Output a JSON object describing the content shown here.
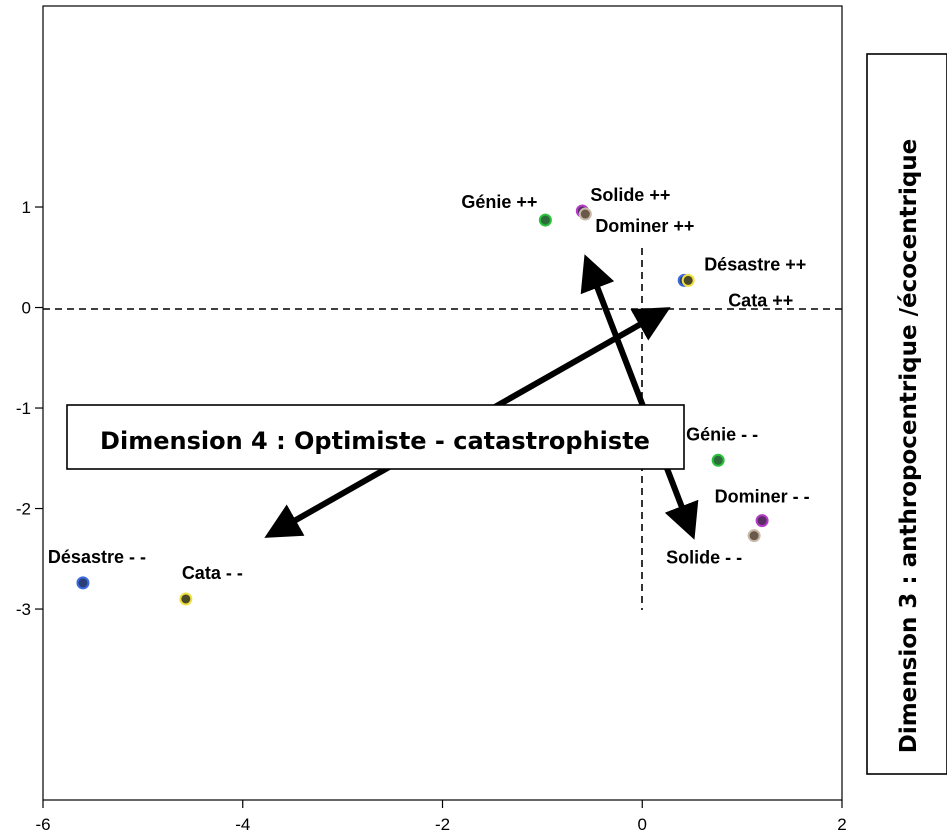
{
  "chart_data": {
    "type": "scatter",
    "xlim": [
      -6,
      2
    ],
    "ylim": [
      -4.9,
      3.0
    ],
    "x_ticks": [
      {
        "value": -6,
        "label": "-6"
      },
      {
        "value": -4,
        "label": "-4"
      },
      {
        "value": -2,
        "label": "-2"
      },
      {
        "value": 0,
        "label": "0"
      },
      {
        "value": 2,
        "label": "2"
      }
    ],
    "y_ticks": [
      {
        "value": 1,
        "label": "1"
      },
      {
        "value": 0,
        "label": "0"
      },
      {
        "value": -1,
        "label": "-1"
      },
      {
        "value": -2,
        "label": "-2"
      },
      {
        "value": -3,
        "label": "-3"
      }
    ],
    "points": [
      {
        "x": -0.97,
        "y": 0.87,
        "color": "#2e6b3a",
        "border": "#27c23a",
        "label": "Génie ++",
        "label_anchor": "end",
        "label_dx": -8,
        "label_dy": -12
      },
      {
        "x": -0.6,
        "y": 0.96,
        "color": "#5a2d63",
        "border": "#b23cc7",
        "label": "Solide ++",
        "label_anchor": "start",
        "label_dx": 8,
        "label_dy": -10
      },
      {
        "x": -0.57,
        "y": 0.93,
        "color": "#6a5848",
        "border": "#c7b8a7",
        "label": "Dominer ++",
        "label_anchor": "start",
        "label_dx": 10,
        "label_dy": 18
      },
      {
        "x": 0.42,
        "y": 0.27,
        "color": "#2b3f77",
        "border": "#3c6ae0",
        "label": "Désastre ++",
        "label_anchor": "start",
        "label_dx": 20,
        "label_dy": -10
      },
      {
        "x": 0.46,
        "y": 0.27,
        "color": "#4a4a2a",
        "border": "#f0e040",
        "label": "Cata ++",
        "label_anchor": "start",
        "label_dx": 40,
        "label_dy": 26
      },
      {
        "x": 0.76,
        "y": -1.52,
        "color": "#2e6b3a",
        "border": "#27c23a",
        "label": "Génie - -",
        "label_anchor": "middle",
        "label_dx": 4,
        "label_dy": -20
      },
      {
        "x": 1.2,
        "y": -2.12,
        "color": "#5a2d63",
        "border": "#b23cc7",
        "label": "Dominer - -",
        "label_anchor": "middle",
        "label_dx": 0,
        "label_dy": -18
      },
      {
        "x": 1.12,
        "y": -2.27,
        "color": "#6a5848",
        "border": "#c7b8a7",
        "label": "Solide - -",
        "label_anchor": "middle",
        "label_dx": -50,
        "label_dy": 28
      },
      {
        "x": -5.6,
        "y": -2.74,
        "color": "#2b3f77",
        "border": "#3c6ae0",
        "label": "Désastre - -",
        "label_anchor": "middle",
        "label_dx": 14,
        "label_dy": -20
      },
      {
        "x": -4.57,
        "y": -2.9,
        "color": "#4a4a2a",
        "border": "#f0e040",
        "label": "Cata - -",
        "label_anchor": "start",
        "label_dx": -4,
        "label_dy": -20
      }
    ],
    "dimension_x": "Dimension 4 : Optimiste - catastrophiste",
    "dimension_y": "Dimension 3 : anthropocentrique /écocentrique"
  }
}
